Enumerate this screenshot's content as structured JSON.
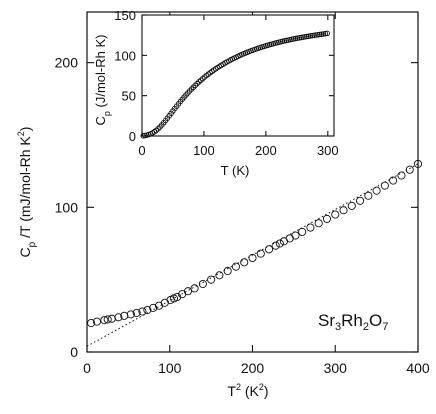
{
  "chart_data": [
    {
      "type": "scatter",
      "role": "main",
      "xlabel": "T",
      "xlabel_sup": "2",
      "xlabel_unit_open": " (K",
      "xlabel_unit_sup": "2",
      "xlabel_unit_close": ")",
      "ylabel": "C",
      "ylabel_sub": "p",
      "ylabel_rest": " /T (mJ/mol-Rh  K",
      "ylabel_sup": "2",
      "ylabel_close": ")",
      "xlim": [
        0,
        400
      ],
      "ylim": [
        0,
        235
      ],
      "xticks": [
        0,
        100,
        200,
        300,
        400
      ],
      "yticks": [
        0,
        100,
        200
      ],
      "annotation": {
        "main": "Sr",
        "s1": "3",
        "m2": "Rh",
        "s2": "2",
        "m3": "O",
        "s3": "7"
      },
      "series": [
        {
          "marker": "circle",
          "x": [
            5,
            12,
            21,
            25,
            30,
            38,
            45,
            53,
            60,
            67,
            73,
            80,
            87,
            94,
            101,
            105,
            109,
            115,
            122,
            130,
            140,
            150,
            160,
            170,
            180,
            190,
            200,
            210,
            220,
            228,
            233,
            238,
            245,
            252,
            260,
            270,
            280,
            290,
            300,
            310,
            320,
            330,
            340,
            350,
            360,
            370,
            380,
            390,
            400
          ],
          "y": [
            20,
            21,
            22,
            22.5,
            23,
            24,
            25,
            26,
            27,
            28,
            29,
            30.5,
            32,
            34,
            36,
            37,
            38,
            40,
            42,
            44,
            47,
            50,
            53,
            56,
            59,
            62,
            65,
            68,
            71,
            73.5,
            75,
            76.5,
            78.5,
            80.5,
            83,
            86,
            89,
            92,
            95,
            98,
            101,
            104.5,
            108,
            111.5,
            115,
            118.5,
            122,
            126,
            130
          ]
        }
      ],
      "fit_line": {
        "x": [
          0,
          400
        ],
        "y": [
          4,
          130
        ],
        "style": "dotted"
      }
    },
    {
      "type": "scatter",
      "role": "inset",
      "xlabel": "T (K)",
      "ylabel": "C",
      "ylabel_sub": "p",
      "ylabel_rest": " (J/mol-Rh K)",
      "xlim": [
        0,
        310
      ],
      "ylim": [
        0,
        150
      ],
      "xticks": [
        0,
        100,
        200,
        300
      ],
      "yticks": [
        0,
        50,
        100,
        150
      ],
      "series": [
        {
          "marker": "circle",
          "x": [
            2,
            5,
            8,
            11,
            14,
            17,
            20,
            23,
            26,
            29,
            32,
            35,
            38,
            41,
            44,
            47,
            50,
            53,
            56,
            59,
            62,
            65,
            68,
            71,
            74,
            77,
            80,
            83,
            86,
            89,
            92,
            95,
            98,
            101,
            104,
            107,
            110,
            113,
            116,
            119,
            122,
            125,
            128,
            131,
            134,
            137,
            140,
            143,
            146,
            149,
            152,
            155,
            158,
            161,
            164,
            167,
            170,
            173,
            176,
            179,
            182,
            185,
            188,
            191,
            194,
            197,
            200,
            203,
            206,
            209,
            212,
            215,
            218,
            221,
            224,
            227,
            230,
            233,
            236,
            239,
            242,
            245,
            248,
            251,
            254,
            257,
            260,
            263,
            266,
            269,
            272,
            275,
            278,
            281,
            284,
            287,
            290,
            293,
            296,
            299
          ],
          "y": [
            0.3,
            0.6,
            1.1,
            1.8,
            2.7,
            3.8,
            5.2,
            6.9,
            8.9,
            11.2,
            13.7,
            16.4,
            19.2,
            22.1,
            25.1,
            28.1,
            31.1,
            34.1,
            37,
            39.9,
            42.7,
            45.5,
            48.2,
            50.8,
            53.3,
            55.8,
            58.2,
            60.5,
            62.8,
            65,
            67.1,
            69.1,
            71.1,
            73,
            74.9,
            76.7,
            78.4,
            80.1,
            81.7,
            83.3,
            84.8,
            86.3,
            87.7,
            89.1,
            90.5,
            91.8,
            93,
            94.3,
            95.5,
            96.6,
            97.7,
            98.8,
            99.9,
            100.9,
            101.9,
            102.9,
            103.8,
            104.7,
            105.6,
            106.5,
            107.3,
            108.1,
            108.9,
            109.7,
            110.4,
            111.1,
            111.8,
            112.5,
            113.2,
            113.8,
            114.5,
            115.1,
            115.7,
            116.2,
            116.8,
            117.4,
            117.9,
            118.4,
            118.9,
            119.4,
            119.9,
            120.4,
            120.8,
            121.3,
            121.7,
            122.1,
            122.5,
            122.9,
            123.3,
            123.7,
            124.1,
            124.5,
            124.8,
            125.2,
            125.5,
            125.9,
            126.2,
            126.5,
            126.9,
            127.2
          ]
        }
      ]
    }
  ]
}
